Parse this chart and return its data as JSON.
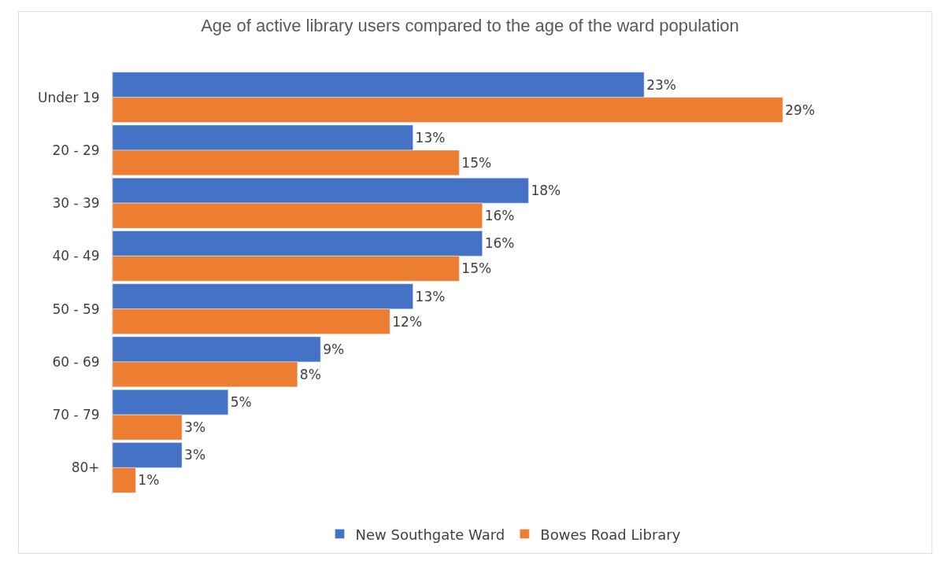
{
  "chart_data": {
    "type": "bar",
    "orientation": "horizontal",
    "title": "Age of active library users compared to the age of the ward population",
    "categories": [
      "Under 19",
      "20 - 29",
      "30 - 39",
      "40 - 49",
      "50 - 59",
      "60 - 69",
      "70 - 79",
      "80+"
    ],
    "series": [
      {
        "name": "New Southgate Ward",
        "color": "#4472c4",
        "values": [
          23,
          13,
          18,
          16,
          13,
          9,
          5,
          3
        ],
        "value_labels": [
          "23%",
          "13%",
          "18%",
          "16%",
          "13%",
          "9%",
          "5%",
          "3%"
        ]
      },
      {
        "name": "Bowes Road Library",
        "color": "#ed7d31",
        "values": [
          29,
          15,
          16,
          15,
          12,
          8,
          3,
          1
        ],
        "value_labels": [
          "29%",
          "15%",
          "16%",
          "15%",
          "12%",
          "8%",
          "3%",
          "1%"
        ]
      }
    ],
    "legend": "bottom",
    "tick_labels": "y"
  }
}
